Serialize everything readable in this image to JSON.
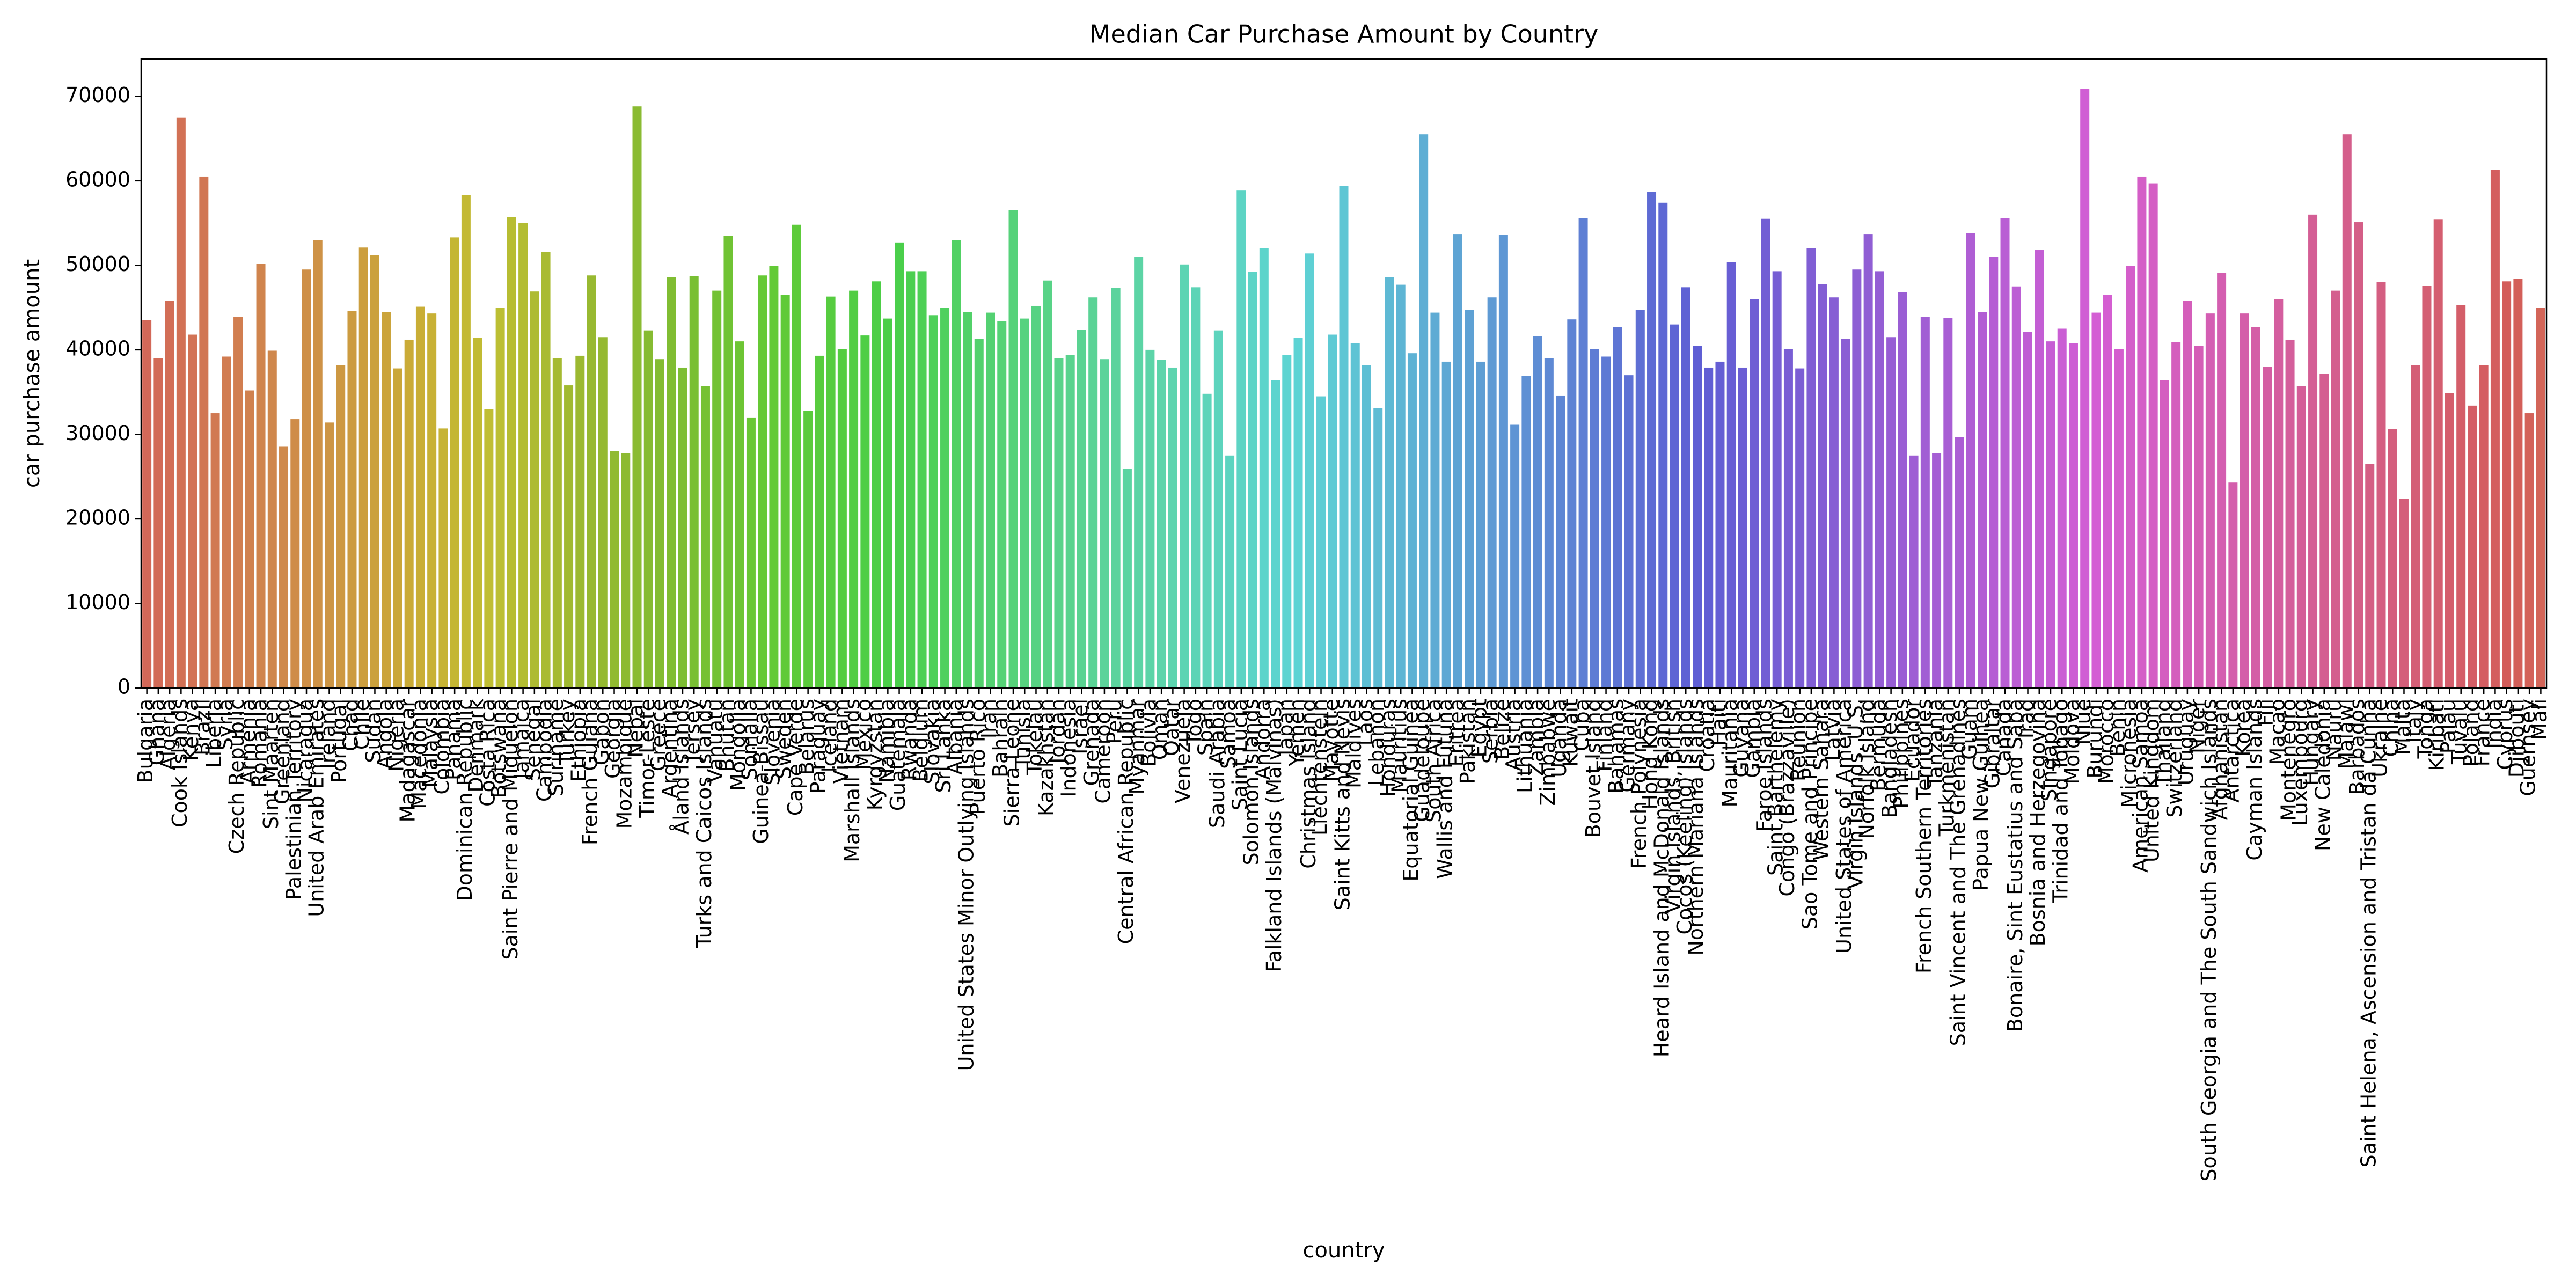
{
  "chart_data": {
    "type": "bar",
    "title": "Median Car Purchase Amount by Country",
    "x_label": "country",
    "y_label": "car purchase amount",
    "palette": "husl",
    "ylim": [
      0,
      74400
    ],
    "yticks": [
      0,
      10000,
      20000,
      30000,
      40000,
      50000,
      60000,
      70000
    ],
    "grid": false,
    "categories": [
      "Bulgaria",
      "Ghana",
      "Algeria",
      "Cook Islands",
      "Kenya",
      "Brazil",
      "Liberia",
      "Syria",
      "Czech Republic",
      "Armenia",
      "Romania",
      "Sint Maarten",
      "Greenland",
      "Palestinian Territory",
      "Nicaragua",
      "United Arab Emirates",
      "Ireland",
      "Portugal",
      "Chad",
      "Chile",
      "Sudan",
      "Angola",
      "Nigeria",
      "Madagascar",
      "Macedonia",
      "Malaysia",
      "Colombia",
      "Panama",
      "Dominican Republic",
      "Denmark",
      "Costa Rica",
      "Botswana",
      "Saint Pierre and Miquelon",
      "Jamaica",
      "Senegal",
      "Cambodia",
      "Suriname",
      "Turkey",
      "Ethiopia",
      "French Guiana",
      "Gabon",
      "Georgia",
      "Mozambique",
      "Nepal",
      "Timor-Leste",
      "Greece",
      "Argentina",
      "Åland Islands",
      "Jersey",
      "Turks and Caicos Islands",
      "Vanuatu",
      "Bhutan",
      "Mongolia",
      "Somalia",
      "Guinea-Bissau",
      "Slovenia",
      "Sweden",
      "Cape Verde",
      "Belarus",
      "Paraguay",
      "Iceland",
      "Vietnam",
      "Marshall Islands",
      "Mexico",
      "Kyrgyzstan",
      "Namibia",
      "Guatemala",
      "Rwanda",
      "Belgium",
      "Slovakia",
      "Sri Lanka",
      "Albania",
      "United States Minor Outlying Islands",
      "Puerto Rico",
      "Iran",
      "Bahrain",
      "Sierra Leone",
      "Tunisia",
      "Tokelau",
      "Kazakhstan",
      "Jordan",
      "Indonesia",
      "Israel",
      "Grenada",
      "Cameroon",
      "Peru",
      "Central African Republic",
      "Myanmar",
      "Bolivia",
      "Oman",
      "Qatar",
      "Venezuela",
      "Togo",
      "Spain",
      "Saudi Arabia",
      "Samoa",
      "Saint Lucia",
      "Solomon Islands",
      "Andorra",
      "Falkland Islands (Malvinas)",
      "Japan",
      "Yemen",
      "Christmas Island",
      "Liechtenstein",
      "Mayotte",
      "Saint Kitts and Nevis",
      "Maldives",
      "Laos",
      "Lebanon",
      "Honduras",
      "Mauritius",
      "Equatorial Guinea",
      "Guadeloupe",
      "South Africa",
      "Wallis and Futuna",
      "Eritrea",
      "Pakistan",
      "Egypt",
      "Serbia",
      "Belize",
      "Austria",
      "Lithuania",
      "Zambia",
      "Zimbabwe",
      "Uganda",
      "Kuwait",
      "Cuba",
      "Bouvet Island",
      "Finland",
      "Bahamas",
      "Germany",
      "French Polynesia",
      "Hong Kong",
      "Heard Island and McDonald Islands",
      "Virgin Islands, British",
      "Cocos (Keeling) Islands",
      "Northern Mariana Islands",
      "Croatia",
      "Haiti",
      "Mauritania",
      "Guyana",
      "Gambia",
      "Faroe Islands",
      "Saint Barthelemy",
      "Congo (Brazzaville)",
      "Reunion",
      "Sao Tome and Principe",
      "Western Sahara",
      "Latvia",
      "United States of America",
      "Virgin Islands, U.S.",
      "Norfolk Island",
      "Bermuda",
      "Bangladesh",
      "Philippines",
      "Ecuador",
      "French Southern Territories",
      "Tanzania",
      "Turkmenistan",
      "Saint Vincent and The Grenadines",
      "Guam",
      "Papua New Guinea",
      "Gibraltar",
      "Canada",
      "Bonaire, Sint Eustatius and Saba",
      "Iraq",
      "Bosnia and Herzegovina",
      "Singapore",
      "Trinidad and Tobago",
      "Moldova",
      "Niue",
      "Burundi",
      "Morocco",
      "Benin",
      "Micronesia",
      "American Samoa",
      "United Kingdom",
      "Thailand",
      "Switzerland",
      "Uruguay",
      "Niger",
      "South Georgia and The South Sandwich Islands",
      "Afghanistan",
      "Antarctica",
      "Korea",
      "Cayman Islands",
      "Fiji",
      "Macao",
      "Montenegro",
      "Luxembourg",
      "Hungary",
      "New Caledonia",
      "Nauru",
      "Malawi",
      "Barbados",
      "Saint Helena, Ascension and Tristan da Cunha",
      "Ukraine",
      "China",
      "Malta",
      "Italy",
      "Tonga",
      "Kiribati",
      "Palau",
      "Tuvalu",
      "Poland",
      "France",
      "India",
      "Cyprus",
      "Djibouti",
      "Guernsey",
      "Mali"
    ],
    "values": [
      43500,
      39000,
      45800,
      67500,
      41800,
      60500,
      32500,
      39200,
      43900,
      35200,
      50200,
      39900,
      28600,
      31800,
      49500,
      53000,
      31400,
      38200,
      44600,
      52100,
      51200,
      44500,
      37800,
      41200,
      45100,
      44300,
      30700,
      53300,
      58300,
      41400,
      33000,
      45000,
      55700,
      55000,
      46900,
      51600,
      39000,
      35800,
      39300,
      48800,
      41500,
      28000,
      27800,
      68800,
      42300,
      38900,
      48600,
      37900,
      48700,
      35700,
      47000,
      53500,
      41000,
      32000,
      48800,
      49900,
      46500,
      54800,
      32800,
      39300,
      46300,
      40100,
      47000,
      41700,
      48100,
      43700,
      52700,
      49300,
      49300,
      44100,
      45000,
      53000,
      44500,
      41300,
      44400,
      43400,
      56500,
      43700,
      45200,
      48200,
      39000,
      39400,
      42400,
      46200,
      38900,
      47300,
      25900,
      51000,
      40000,
      38800,
      37900,
      50100,
      47400,
      34800,
      42300,
      27500,
      58900,
      49200,
      52000,
      36400,
      39400,
      41400,
      51400,
      34500,
      41800,
      59400,
      40800,
      38200,
      33100,
      48600,
      47700,
      39600,
      65500,
      44400,
      38600,
      53700,
      44700,
      38600,
      46200,
      53600,
      31200,
      36900,
      41600,
      39000,
      34600,
      43600,
      55600,
      40100,
      39200,
      42700,
      37000,
      44700,
      58700,
      57400,
      43000,
      47400,
      40500,
      37900,
      38600,
      50400,
      37900,
      46000,
      55500,
      49300,
      40100,
      37800,
      52000,
      47800,
      46200,
      41300,
      49500,
      53700,
      49300,
      41500,
      46800,
      27500,
      43900,
      27800,
      43800,
      29700,
      53800,
      44500,
      51000,
      55600,
      47500,
      42100,
      51800,
      41000,
      42500,
      40800,
      70900,
      44400,
      46500,
      40100,
      49900,
      60500,
      59700,
      36400,
      40900,
      45800,
      40500,
      44300,
      49100,
      24300,
      44300,
      42700,
      38000,
      46000,
      41200,
      35700,
      56000,
      37200,
      47000,
      65500,
      55100,
      26500,
      48000,
      30600,
      22400,
      38200,
      47600,
      55400,
      34900,
      45300,
      33400,
      38200,
      61300,
      48100,
      48400,
      32500,
      45000
    ]
  }
}
